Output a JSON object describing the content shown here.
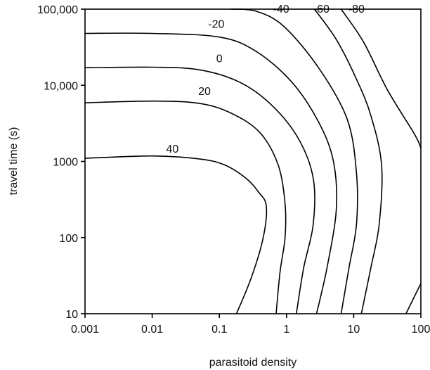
{
  "chart_data": {
    "type": "contour",
    "xlabel": "parasitoid density",
    "ylabel": "travel time (s)",
    "x_scale": "log",
    "y_scale": "log",
    "xlim": [
      0.001,
      100
    ],
    "ylim": [
      10,
      100000
    ],
    "grid": false,
    "x_ticks": [
      {
        "value": 0.001,
        "label": "0.001"
      },
      {
        "value": 0.01,
        "label": "0.01"
      },
      {
        "value": 0.1,
        "label": "0.1"
      },
      {
        "value": 1,
        "label": "1"
      },
      {
        "value": 10,
        "label": "10"
      },
      {
        "value": 100,
        "label": "100"
      }
    ],
    "y_ticks": [
      {
        "value": 10,
        "label": "10"
      },
      {
        "value": 100,
        "label": "100"
      },
      {
        "value": 1000,
        "label": "1000"
      },
      {
        "value": 10000,
        "label": "10,000"
      },
      {
        "value": 100000,
        "label": "100,000"
      }
    ],
    "contours": [
      {
        "level": "40",
        "label_at": [
          0.02,
          1300
        ],
        "points": [
          [
            0.001,
            1100
          ],
          [
            0.01,
            1180
          ],
          [
            0.05,
            1080
          ],
          [
            0.12,
            900
          ],
          [
            0.25,
            600
          ],
          [
            0.38,
            400
          ],
          [
            0.5,
            260
          ],
          [
            0.45,
            100
          ],
          [
            0.3,
            30
          ],
          [
            0.18,
            10
          ]
        ]
      },
      {
        "level": "20",
        "label_at": [
          0.06,
          7500
        ],
        "points": [
          [
            0.001,
            5900
          ],
          [
            0.01,
            6200
          ],
          [
            0.05,
            5800
          ],
          [
            0.15,
            4300
          ],
          [
            0.4,
            2400
          ],
          [
            0.75,
            900
          ],
          [
            0.95,
            280
          ],
          [
            0.95,
            100
          ],
          [
            0.8,
            35
          ],
          [
            0.7,
            10
          ]
        ]
      },
      {
        "level": "0",
        "label_at": [
          0.1,
          20000
        ],
        "points": [
          [
            0.001,
            17000
          ],
          [
            0.01,
            17300
          ],
          [
            0.05,
            16000
          ],
          [
            0.2,
            11000
          ],
          [
            0.6,
            5500
          ],
          [
            1.5,
            2000
          ],
          [
            2.5,
            600
          ],
          [
            2.5,
            150
          ],
          [
            1.8,
            40
          ],
          [
            1.4,
            10
          ]
        ]
      },
      {
        "level": "-20",
        "label_at": [
          0.09,
          57000
        ],
        "points": [
          [
            0.001,
            48000
          ],
          [
            0.01,
            48000
          ],
          [
            0.1,
            43000
          ],
          [
            0.35,
            28000
          ],
          [
            1.2,
            11000
          ],
          [
            3,
            3300
          ],
          [
            5,
            1000
          ],
          [
            5.5,
            230
          ],
          [
            4,
            40
          ],
          [
            2.8,
            10
          ]
        ]
      },
      {
        "level": "-40",
        "label_at": [
          0.83,
          90000
        ],
        "points": [
          [
            0.15,
            100000
          ],
          [
            0.35,
            94000
          ],
          [
            0.9,
            60000
          ],
          [
            3,
            17000
          ],
          [
            8,
            3600
          ],
          [
            11,
            700
          ],
          [
            11,
            150
          ],
          [
            8.5,
            40
          ],
          [
            6.5,
            10
          ]
        ]
      },
      {
        "level": "-60",
        "label_at": [
          3.3,
          90000
        ],
        "points": [
          [
            2.6,
            100000
          ],
          [
            5.5,
            40000
          ],
          [
            11,
            12000
          ],
          [
            18,
            4000
          ],
          [
            26,
            900
          ],
          [
            24,
            150
          ],
          [
            18,
            40
          ],
          [
            13,
            10
          ]
        ]
      },
      {
        "level": "-80",
        "label_at": [
          11,
          90000
        ],
        "points": [
          [
            6.5,
            100000
          ],
          [
            14,
            37000
          ],
          [
            32,
            8600
          ],
          [
            80,
            2300
          ],
          [
            100,
            1500
          ]
        ]
      },
      {
        "level": "",
        "label_at": null,
        "points": [
          [
            60,
            10
          ],
          [
            100,
            25
          ]
        ]
      }
    ]
  }
}
